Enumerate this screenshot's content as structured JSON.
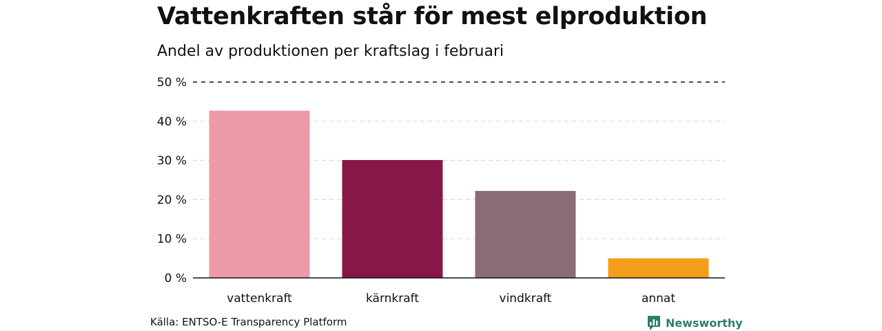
{
  "header": {
    "title": "Vattenkraften står för mest elproduktion",
    "subtitle": "Andel av produktionen per kraftslag i februari"
  },
  "footer": {
    "source": "Källa: ENTSO-E Transparency Platform",
    "brand": "Newsworthy",
    "brand_icon": "bar-chart-speech-icon",
    "brand_color": "#2e7d6b"
  },
  "chart_data": {
    "type": "bar",
    "categories": [
      "vattenkraft",
      "kärnkraft",
      "vindkraft",
      "annat"
    ],
    "values": [
      42.7,
      30.1,
      22.2,
      5.0
    ],
    "colors": [
      "#ee99a8",
      "#861747",
      "#8a6d74",
      "#f59e1a"
    ],
    "ylim": [
      0,
      50
    ],
    "yticks": [
      0,
      10,
      20,
      30,
      40,
      50
    ],
    "ytick_labels": [
      "0 %",
      "10 %",
      "20 %",
      "30 %",
      "40 %",
      "50 %"
    ],
    "grid": true,
    "xlabel": "",
    "ylabel": ""
  }
}
